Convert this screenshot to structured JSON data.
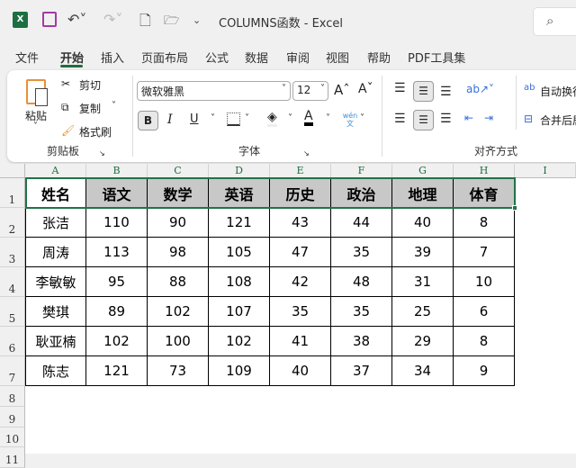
{
  "window": {
    "title": "COLUMNS函数  -  Excel"
  },
  "menu_tabs": [
    "文件",
    "开始",
    "插入",
    "页面布局",
    "公式",
    "数据",
    "审阅",
    "视图",
    "帮助",
    "PDF工具集"
  ],
  "active_tab": "开始",
  "clipboard": {
    "paste": "粘贴",
    "cut": "剪切",
    "copy": "复制",
    "format_painter": "格式刷",
    "group": "剪贴板"
  },
  "font": {
    "name": "微软雅黑",
    "size": "12",
    "bold": "B",
    "italic": "I",
    "underline": "U",
    "group": "字体",
    "phonetic": "wén 文"
  },
  "alignment": {
    "wrap": "自动换行",
    "merge": "合并后居中",
    "group": "对齐方式"
  },
  "columns": [
    "A",
    "B",
    "C",
    "D",
    "E",
    "F",
    "G",
    "H",
    "I"
  ],
  "rows": [
    "1",
    "2",
    "3",
    "4",
    "5",
    "6",
    "7",
    "8",
    "9",
    "10",
    "11"
  ],
  "table": {
    "headers": [
      "姓名",
      "语文",
      "数学",
      "英语",
      "历史",
      "政治",
      "地理",
      "体育"
    ],
    "body": [
      [
        "张洁",
        "110",
        "90",
        "121",
        "43",
        "44",
        "40",
        "8"
      ],
      [
        "周涛",
        "113",
        "98",
        "105",
        "47",
        "35",
        "39",
        "7"
      ],
      [
        "李敏敏",
        "95",
        "88",
        "108",
        "42",
        "48",
        "31",
        "10"
      ],
      [
        "樊琪",
        "89",
        "102",
        "107",
        "35",
        "35",
        "25",
        "6"
      ],
      [
        "耿亚楠",
        "102",
        "100",
        "102",
        "41",
        "38",
        "29",
        "8"
      ],
      [
        "陈志",
        "121",
        "73",
        "109",
        "40",
        "37",
        "34",
        "9"
      ]
    ]
  },
  "colors": {
    "accent": "#217346",
    "header_fill": "#c8c8c8"
  }
}
